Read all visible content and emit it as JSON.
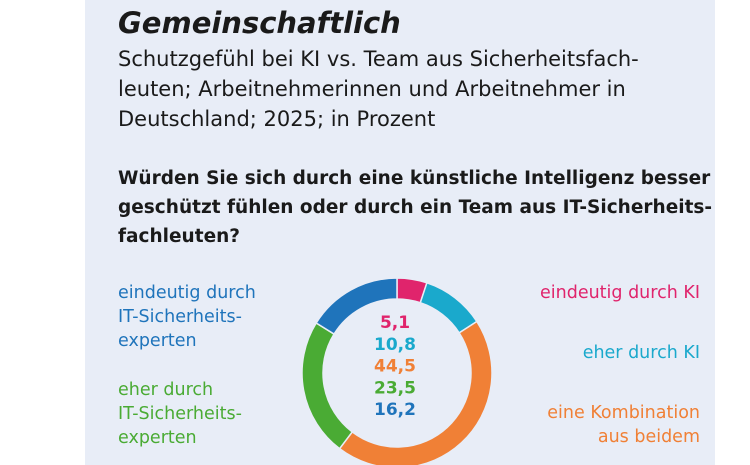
{
  "chart_data": {
    "type": "donut",
    "title": "Gemeinschaftlich",
    "subtitle": "Schutzgefühl bei KI vs. Team aus Sicherheitsfach-\nleuten; Arbeitnehmerinnen und Arbeitnehmer in\nDeutschland; 2025; in Prozent",
    "question": "Würden Sie sich durch eine künstliche Intelligenz besser\ngeschützt fühlen oder durch ein Team aus IT-Sicherheits-\nfachleuten?",
    "categories": [
      "eindeutig durch KI",
      "eher durch KI",
      "eine Kombination\naus beidem",
      "eher durch\nIT-Sicherheits-\nexperten",
      "eindeutig durch\nIT-Sicherheits-\nexperten"
    ],
    "values": [
      5.1,
      10.8,
      44.5,
      23.5,
      16.2
    ],
    "value_labels": [
      "5,1",
      "10,8",
      "44,5",
      "23,5",
      "16,2"
    ],
    "colors": [
      "#e0246c",
      "#1aa9cc",
      "#f08036",
      "#4aab34",
      "#1f74bb"
    ]
  }
}
